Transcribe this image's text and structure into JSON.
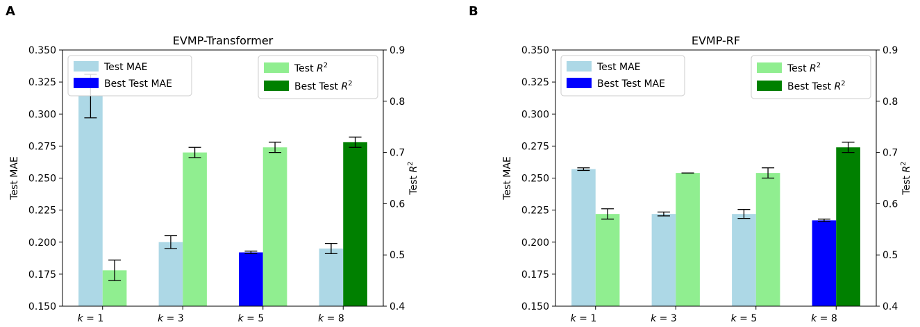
{
  "colors": {
    "mae": "#add8e6",
    "best_mae": "#0000ff",
    "r2": "#90ee90",
    "best_r2": "#008000",
    "axis": "#000000",
    "legend_border": "#cccccc"
  },
  "chart_data": [
    {
      "panel": "A",
      "title": "EVMP-Transformer",
      "type": "bar",
      "categories": [
        "k = 1",
        "k = 3",
        "k = 5",
        "k = 8"
      ],
      "category_parts": [
        {
          "var": "k",
          "rest": " = 1"
        },
        {
          "var": "k",
          "rest": " = 3"
        },
        {
          "var": "k",
          "rest": " = 5"
        },
        {
          "var": "k",
          "rest": " = 8"
        }
      ],
      "ylabel_left": "Test MAE",
      "ylabel_right": "Test R2",
      "ylim_left": [
        0.15,
        0.35
      ],
      "ylim_right": [
        0.4,
        0.9
      ],
      "yticks_left": [
        "0.150",
        "0.175",
        "0.200",
        "0.225",
        "0.250",
        "0.275",
        "0.300",
        "0.325",
        "0.350"
      ],
      "yticks_right": [
        "0.4",
        "0.5",
        "0.6",
        "0.7",
        "0.8",
        "0.9"
      ],
      "series": [
        {
          "name": "Test MAE",
          "axis": "left",
          "values": [
            0.314,
            0.2,
            0.192,
            0.195
          ],
          "errors": [
            0.017,
            0.005,
            0.001,
            0.004
          ],
          "best_index": 2
        },
        {
          "name": "Test R2",
          "axis": "right",
          "values": [
            0.47,
            0.7,
            0.71,
            0.72
          ],
          "errors": [
            0.02,
            0.01,
            0.01,
            0.01
          ],
          "best_index": 3
        }
      ],
      "legend_left": {
        "entries": [
          "Test MAE",
          "Best Test MAE"
        ],
        "placement": "top-left"
      },
      "legend_right": {
        "entries": [
          {
            "text": "Test ",
            "var": "R",
            "sup": "2"
          },
          {
            "text": "Best Test ",
            "var": "R",
            "sup": "2"
          }
        ],
        "placement": "top-right"
      }
    },
    {
      "panel": "B",
      "title": "EVMP-RF",
      "type": "bar",
      "categories": [
        "k = 1",
        "k = 3",
        "k = 5",
        "k = 8"
      ],
      "category_parts": [
        {
          "var": "k",
          "rest": " = 1"
        },
        {
          "var": "k",
          "rest": " = 3"
        },
        {
          "var": "k",
          "rest": " = 5"
        },
        {
          "var": "k",
          "rest": " = 8"
        }
      ],
      "ylabel_left": "Test MAE",
      "ylabel_right": "Test R2",
      "ylim_left": [
        0.15,
        0.35
      ],
      "ylim_right": [
        0.4,
        0.9
      ],
      "yticks_left": [
        "0.150",
        "0.175",
        "0.200",
        "0.225",
        "0.250",
        "0.275",
        "0.300",
        "0.325",
        "0.350"
      ],
      "yticks_right": [
        "0.4",
        "0.5",
        "0.6",
        "0.7",
        "0.8",
        "0.9"
      ],
      "series": [
        {
          "name": "Test MAE",
          "axis": "left",
          "values": [
            0.257,
            0.222,
            0.222,
            0.217
          ],
          "errors": [
            0.001,
            0.0015,
            0.0035,
            0.001
          ],
          "best_index": 3
        },
        {
          "name": "Test R2",
          "axis": "right",
          "values": [
            0.58,
            0.66,
            0.66,
            0.71
          ],
          "errors": [
            0.01,
            0.0,
            0.01,
            0.01
          ],
          "best_index": 3
        }
      ],
      "legend_left": {
        "entries": [
          "Test MAE",
          "Best Test MAE"
        ],
        "placement": "top-left"
      },
      "legend_right": {
        "entries": [
          {
            "text": "Test ",
            "var": "R",
            "sup": "2"
          },
          {
            "text": "Best Test ",
            "var": "R",
            "sup": "2"
          }
        ],
        "placement": "top-right"
      }
    }
  ]
}
